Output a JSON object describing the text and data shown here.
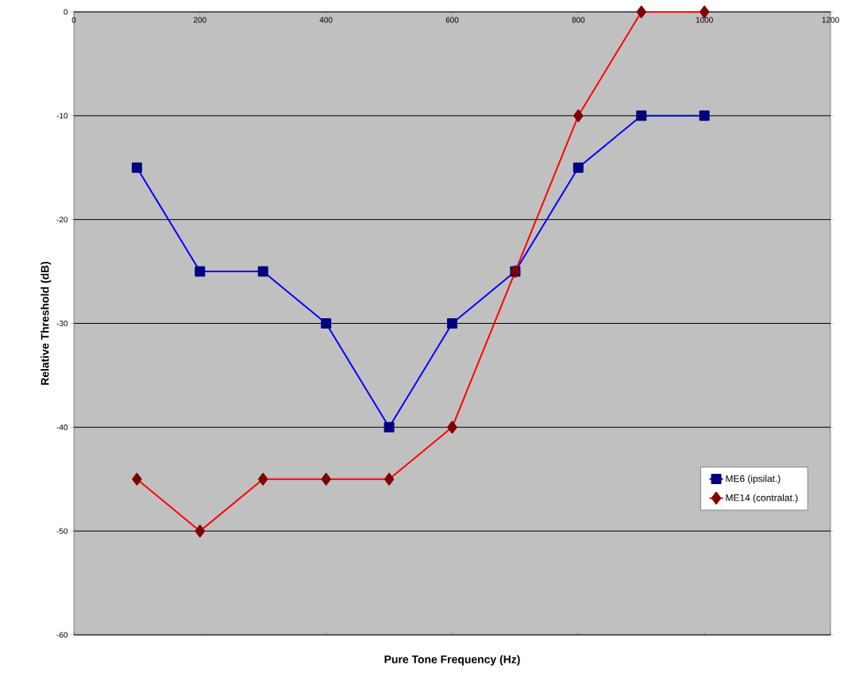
{
  "chart_data": {
    "type": "line",
    "xlabel": "Pure Tone Frequency (Hz)",
    "ylabel": "Relative Threshold (dB)",
    "x": [
      100,
      200,
      300,
      400,
      500,
      600,
      700,
      800,
      900,
      1000
    ],
    "series": [
      {
        "name": "ME6 (ipsilat.)",
        "color": "#0000ff",
        "marker": "square",
        "values": [
          -15,
          -25,
          -25,
          -30,
          -40,
          -30,
          -25,
          -15,
          -10,
          -10
        ]
      },
      {
        "name": "ME14 (contralat.)",
        "color": "#ff0000",
        "marker": "diamond",
        "values": [
          -45,
          -50,
          -45,
          -45,
          -45,
          -40,
          -25,
          -10,
          0,
          0
        ]
      }
    ],
    "xlim": [
      0,
      1200
    ],
    "ylim": [
      -60,
      0
    ],
    "xticks": [
      0,
      200,
      400,
      600,
      800,
      1000,
      1200
    ],
    "yticks": [
      -60,
      -50,
      -40,
      -30,
      -20,
      -10,
      0
    ],
    "grid": "y",
    "legend": "right",
    "line_style": "solid"
  }
}
